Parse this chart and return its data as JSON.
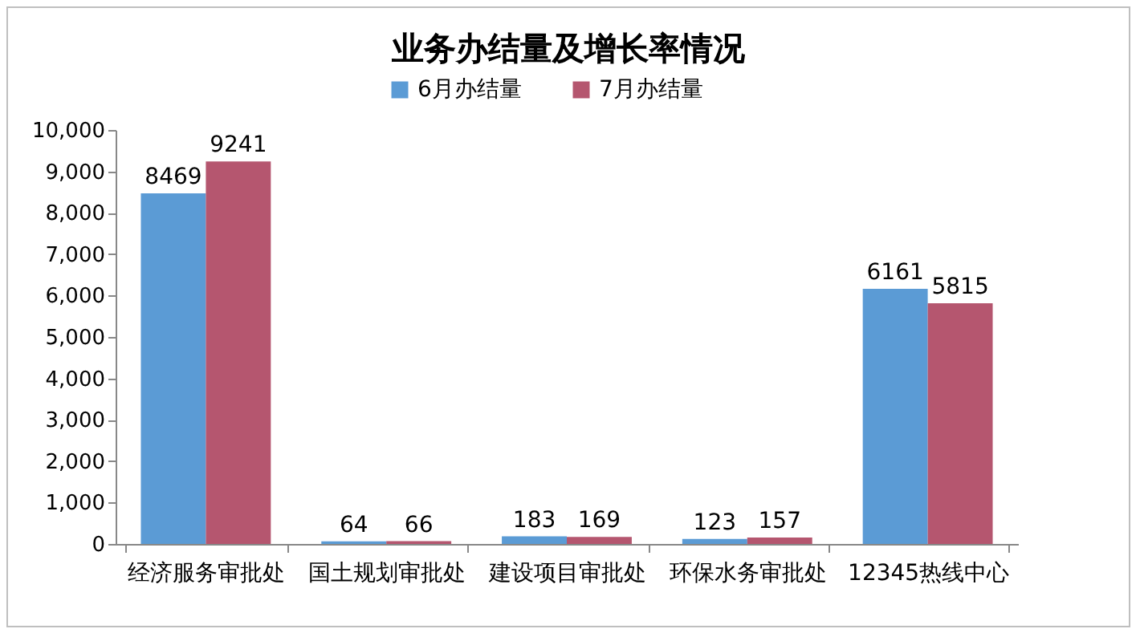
{
  "chart_data": {
    "type": "bar",
    "title": "业务办结量及增长率情况",
    "categories": [
      "经济服务审批处",
      "国土规划审批处",
      "建设项目审批处",
      "环保水务审批处",
      "12345热线中心"
    ],
    "series": [
      {
        "name": "6月办结量",
        "color": "#5b9bd5",
        "values": [
          8469,
          64,
          183,
          123,
          6161
        ]
      },
      {
        "name": "7月办结量",
        "color": "#b5566f",
        "values": [
          9241,
          66,
          169,
          157,
          5815
        ]
      }
    ],
    "ylim": [
      0,
      10000
    ],
    "yticks": [
      0,
      {
        "value": 1000,
        "label": "1,000"
      },
      {
        "value": 2000,
        "label": "2,000"
      },
      {
        "value": 3000,
        "label": "3,000"
      },
      {
        "value": 4000,
        "label": "4,000"
      },
      {
        "value": 5000,
        "label": "5,000"
      },
      {
        "value": 6000,
        "label": "6,000"
      },
      {
        "value": 7000,
        "label": "7,000"
      },
      {
        "value": 8000,
        "label": "8,000"
      },
      {
        "value": 9000,
        "label": "9,000"
      },
      {
        "value": 10000,
        "label": "10,000"
      }
    ],
    "grid": false,
    "legend": "top",
    "data_labels": true
  }
}
